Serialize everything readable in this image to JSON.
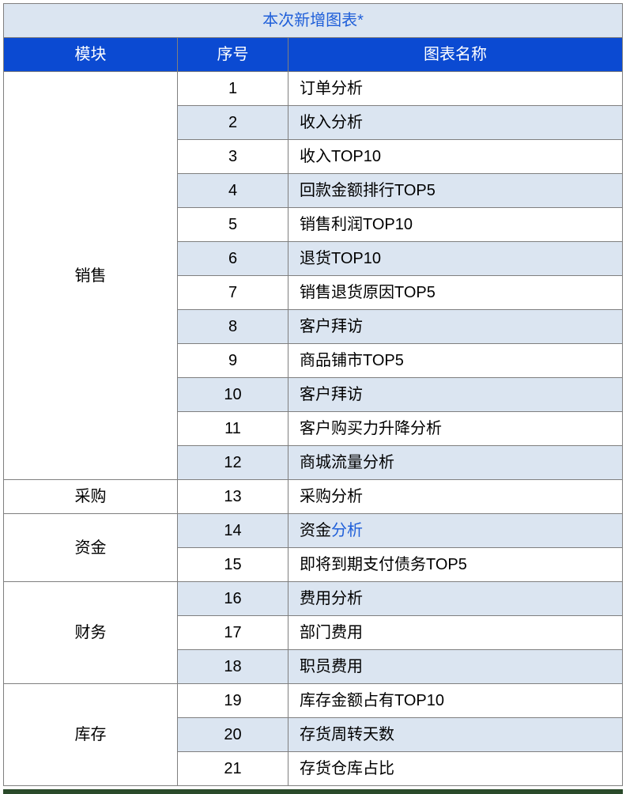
{
  "title": "本次新增图表*",
  "columns": {
    "module": "模块",
    "num": "序号",
    "name": "图表名称"
  },
  "colors": {
    "title_bg": "#dbe5f1",
    "title_fg": "#1f5fd9",
    "head_bg": "#0b4ad2",
    "head_fg": "#ffffff",
    "band_a": "#ffffff",
    "band_b": "#dbe5f1",
    "border": "#7f7f7f",
    "link_fg": "#1f5fd9"
  },
  "groups": [
    {
      "module": "销售",
      "rows": [
        {
          "num": "1",
          "name": "订单分析"
        },
        {
          "num": "2",
          "name": "收入分析"
        },
        {
          "num": "3",
          "name": "收入TOP10"
        },
        {
          "num": "4",
          "name": "回款金额排行TOP5"
        },
        {
          "num": "5",
          "name": "销售利润TOP10"
        },
        {
          "num": "6",
          "name": "退货TOP10"
        },
        {
          "num": "7",
          "name": "销售退货原因TOP5"
        },
        {
          "num": "8",
          "name": "客户拜访"
        },
        {
          "num": "9",
          "name": "商品铺市TOP5"
        },
        {
          "num": "10",
          "name": "客户拜访"
        },
        {
          "num": "11",
          "name": "客户购买力升降分析"
        },
        {
          "num": "12",
          "name": "商城流量分析"
        }
      ]
    },
    {
      "module": "采购",
      "rows": [
        {
          "num": "13",
          "name": "采购分析"
        }
      ]
    },
    {
      "module": "资金",
      "rows": [
        {
          "num": "14",
          "name_parts": [
            {
              "text": "资金",
              "color": "#000000"
            },
            {
              "text": "分析",
              "color": "#1f5fd9"
            }
          ]
        },
        {
          "num": "15",
          "name": "即将到期支付债务TOP5"
        }
      ]
    },
    {
      "module": "财务",
      "rows": [
        {
          "num": "16",
          "name": "费用分析"
        },
        {
          "num": "17",
          "name": "部门费用"
        },
        {
          "num": "18",
          "name": "职员费用"
        }
      ]
    },
    {
      "module": "库存",
      "rows": [
        {
          "num": "19",
          "name": "库存金额占有TOP10"
        },
        {
          "num": "20",
          "name": "存货周转天数"
        },
        {
          "num": "21",
          "name": "存货仓库占比"
        }
      ]
    }
  ]
}
